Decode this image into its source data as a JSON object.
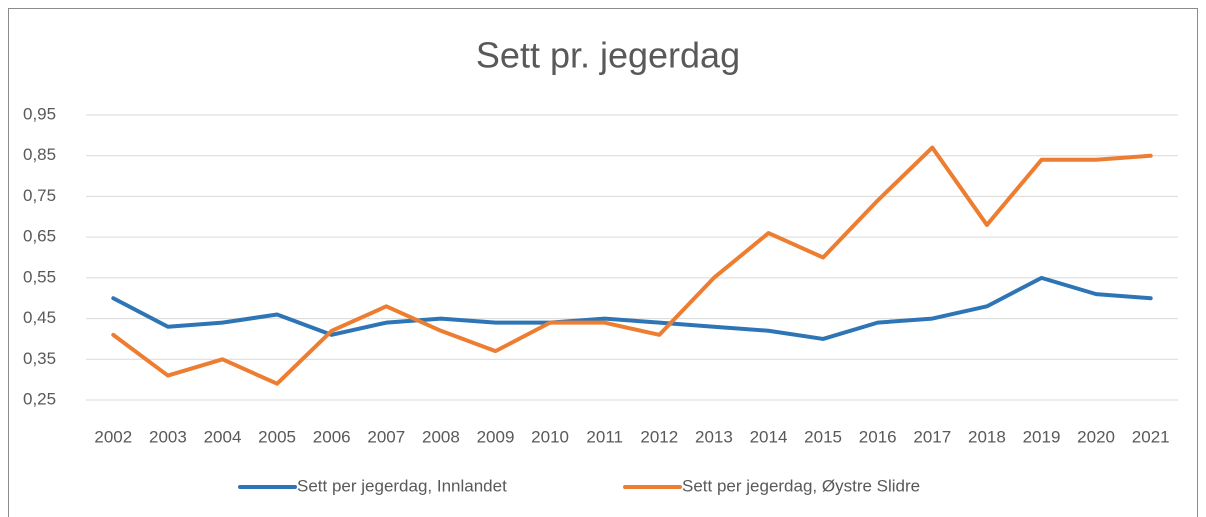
{
  "chart_data": {
    "type": "line",
    "title": "Sett pr. jegerdag",
    "categories": [
      "2002",
      "2003",
      "2004",
      "2005",
      "2006",
      "2007",
      "2008",
      "2009",
      "2010",
      "2011",
      "2012",
      "2013",
      "2014",
      "2015",
      "2016",
      "2017",
      "2018",
      "2019",
      "2020",
      "2021"
    ],
    "series": [
      {
        "name": "Sett per jegerdag, Innlandet",
        "color": "#2e75b6",
        "values": [
          0.5,
          0.43,
          0.44,
          0.46,
          0.41,
          0.44,
          0.45,
          0.44,
          0.44,
          0.45,
          0.44,
          0.43,
          0.42,
          0.4,
          0.44,
          0.45,
          0.48,
          0.55,
          0.51,
          0.5
        ]
      },
      {
        "name": "Sett per jegerdag, Øystre Slidre",
        "color": "#ed7d31",
        "values": [
          0.41,
          0.31,
          0.35,
          0.29,
          0.42,
          0.48,
          0.42,
          0.37,
          0.44,
          0.44,
          0.41,
          0.55,
          0.66,
          0.6,
          0.74,
          0.87,
          0.68,
          0.84,
          0.84,
          0.85
        ]
      }
    ],
    "ylim": [
      0.25,
      0.95
    ],
    "yticks": [
      {
        "value": 0.25,
        "label": "0,25"
      },
      {
        "value": 0.35,
        "label": "0,35"
      },
      {
        "value": 0.45,
        "label": "0,45"
      },
      {
        "value": 0.55,
        "label": "0,55"
      },
      {
        "value": 0.65,
        "label": "0,65"
      },
      {
        "value": 0.75,
        "label": "0,75"
      },
      {
        "value": 0.85,
        "label": "0,85"
      },
      {
        "value": 0.95,
        "label": "0,95"
      }
    ],
    "grid": true,
    "legend": "bottom"
  }
}
